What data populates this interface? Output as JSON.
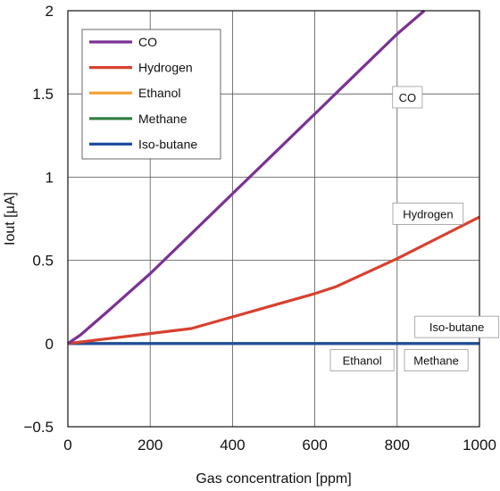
{
  "chart_data": {
    "type": "line",
    "title": "",
    "xlabel": "Gas concentration [ppm]",
    "ylabel": "Iout [μA]",
    "xlim": [
      0,
      1000
    ],
    "ylim": [
      -0.5,
      2
    ],
    "xticks": [
      0,
      200,
      400,
      600,
      800,
      1000
    ],
    "yticks": [
      -0.5,
      0,
      0.5,
      1,
      1.5,
      2
    ],
    "xtick_labels": [
      "0",
      "200",
      "400",
      "600",
      "800",
      "1000"
    ],
    "ytick_labels": [
      "−0.5",
      "0",
      "0.5",
      "1",
      "1.5",
      "2"
    ],
    "grid": true,
    "legend_position": "top-left",
    "series": [
      {
        "name": "CO",
        "color": "#7b3294",
        "x": [
          0,
          30,
          100,
          200,
          300,
          400,
          500,
          600,
          700,
          800,
          866
        ],
        "y": [
          0,
          0.05,
          0.2,
          0.42,
          0.66,
          0.9,
          1.14,
          1.38,
          1.62,
          1.86,
          2.0
        ]
      },
      {
        "name": "Hydrogen",
        "color": "#d7412f",
        "x": [
          0,
          100,
          200,
          300,
          400,
          500,
          600,
          650,
          800,
          1000
        ],
        "y": [
          0,
          0.03,
          0.06,
          0.09,
          0.16,
          0.23,
          0.3,
          0.34,
          0.51,
          0.76
        ]
      },
      {
        "name": "Ethanol",
        "color": "#f0a030",
        "x": [
          0,
          1000
        ],
        "y": [
          0,
          0
        ]
      },
      {
        "name": "Methane",
        "color": "#2e7d3e",
        "x": [
          0,
          1000
        ],
        "y": [
          0,
          0
        ]
      },
      {
        "name": "Iso-butane",
        "color": "#1f4e9c",
        "x": [
          0,
          1000
        ],
        "y": [
          0,
          0
        ]
      }
    ],
    "annotations": [
      {
        "text": "CO",
        "x": 825,
        "y": 1.48
      },
      {
        "text": "Hydrogen",
        "x": 875,
        "y": 0.78
      },
      {
        "text": "Iso-butane",
        "x": 945,
        "y": 0.1
      },
      {
        "text": "Ethanol",
        "x": 715,
        "y": -0.1
      },
      {
        "text": "Methane",
        "x": 895,
        "y": -0.1
      }
    ]
  }
}
